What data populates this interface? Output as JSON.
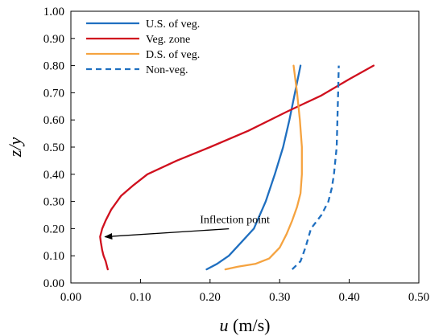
{
  "chart_data": {
    "type": "line",
    "title": "",
    "xlabel_var": "u",
    "xlabel_unit": " (m/s)",
    "ylabel": "z/y",
    "xlim": [
      0,
      0.5
    ],
    "ylim": [
      0,
      1.0
    ],
    "x_ticks": [
      "0.00",
      "0.10",
      "0.20",
      "0.30",
      "0.40",
      "0.50"
    ],
    "y_ticks": [
      "0.00",
      "0.10",
      "0.20",
      "0.30",
      "0.40",
      "0.50",
      "0.60",
      "0.70",
      "0.80",
      "0.90",
      "1.00"
    ],
    "grid": false,
    "legend_position": "top-left",
    "series": [
      {
        "name": "U.S. of veg.",
        "color": "#1f6fc0",
        "dash": "solid",
        "points": [
          [
            0.195,
            0.05
          ],
          [
            0.21,
            0.07
          ],
          [
            0.227,
            0.1
          ],
          [
            0.245,
            0.15
          ],
          [
            0.263,
            0.2
          ],
          [
            0.28,
            0.3
          ],
          [
            0.293,
            0.4
          ],
          [
            0.305,
            0.5
          ],
          [
            0.314,
            0.6
          ],
          [
            0.322,
            0.7
          ],
          [
            0.33,
            0.8
          ]
        ]
      },
      {
        "name": "Veg. zone",
        "color": "#d0101e",
        "dash": "solid",
        "points": [
          [
            0.053,
            0.05
          ],
          [
            0.05,
            0.08
          ],
          [
            0.047,
            0.1
          ],
          [
            0.045,
            0.12
          ],
          [
            0.043,
            0.15
          ],
          [
            0.042,
            0.17
          ],
          [
            0.045,
            0.2
          ],
          [
            0.05,
            0.23
          ],
          [
            0.058,
            0.27
          ],
          [
            0.072,
            0.32
          ],
          [
            0.09,
            0.36
          ],
          [
            0.11,
            0.4
          ],
          [
            0.152,
            0.45
          ],
          [
            0.2,
            0.5
          ],
          [
            0.255,
            0.56
          ],
          [
            0.31,
            0.63
          ],
          [
            0.36,
            0.69
          ],
          [
            0.4,
            0.75
          ],
          [
            0.435,
            0.8
          ]
        ]
      },
      {
        "name": "D.S. of veg.",
        "color": "#f5a340",
        "dash": "solid",
        "points": [
          [
            0.222,
            0.05
          ],
          [
            0.24,
            0.06
          ],
          [
            0.265,
            0.07
          ],
          [
            0.285,
            0.09
          ],
          [
            0.3,
            0.13
          ],
          [
            0.31,
            0.18
          ],
          [
            0.318,
            0.23
          ],
          [
            0.325,
            0.28
          ],
          [
            0.33,
            0.33
          ],
          [
            0.332,
            0.4
          ],
          [
            0.332,
            0.5
          ],
          [
            0.329,
            0.6
          ],
          [
            0.325,
            0.7
          ],
          [
            0.32,
            0.8
          ]
        ]
      },
      {
        "name": "Non-veg.",
        "color": "#1f6fc0",
        "dash": "dashed",
        "points": [
          [
            0.318,
            0.05
          ],
          [
            0.33,
            0.08
          ],
          [
            0.337,
            0.13
          ],
          [
            0.345,
            0.2
          ],
          [
            0.36,
            0.25
          ],
          [
            0.37,
            0.3
          ],
          [
            0.375,
            0.35
          ],
          [
            0.378,
            0.4
          ],
          [
            0.38,
            0.45
          ],
          [
            0.382,
            0.5
          ],
          [
            0.383,
            0.6
          ],
          [
            0.384,
            0.7
          ],
          [
            0.385,
            0.8
          ]
        ]
      }
    ],
    "annotations": [
      {
        "text": "Inflection point",
        "arrow_to": [
          0.042,
          0.17
        ],
        "text_at": [
          0.16,
          0.22
        ]
      }
    ]
  }
}
